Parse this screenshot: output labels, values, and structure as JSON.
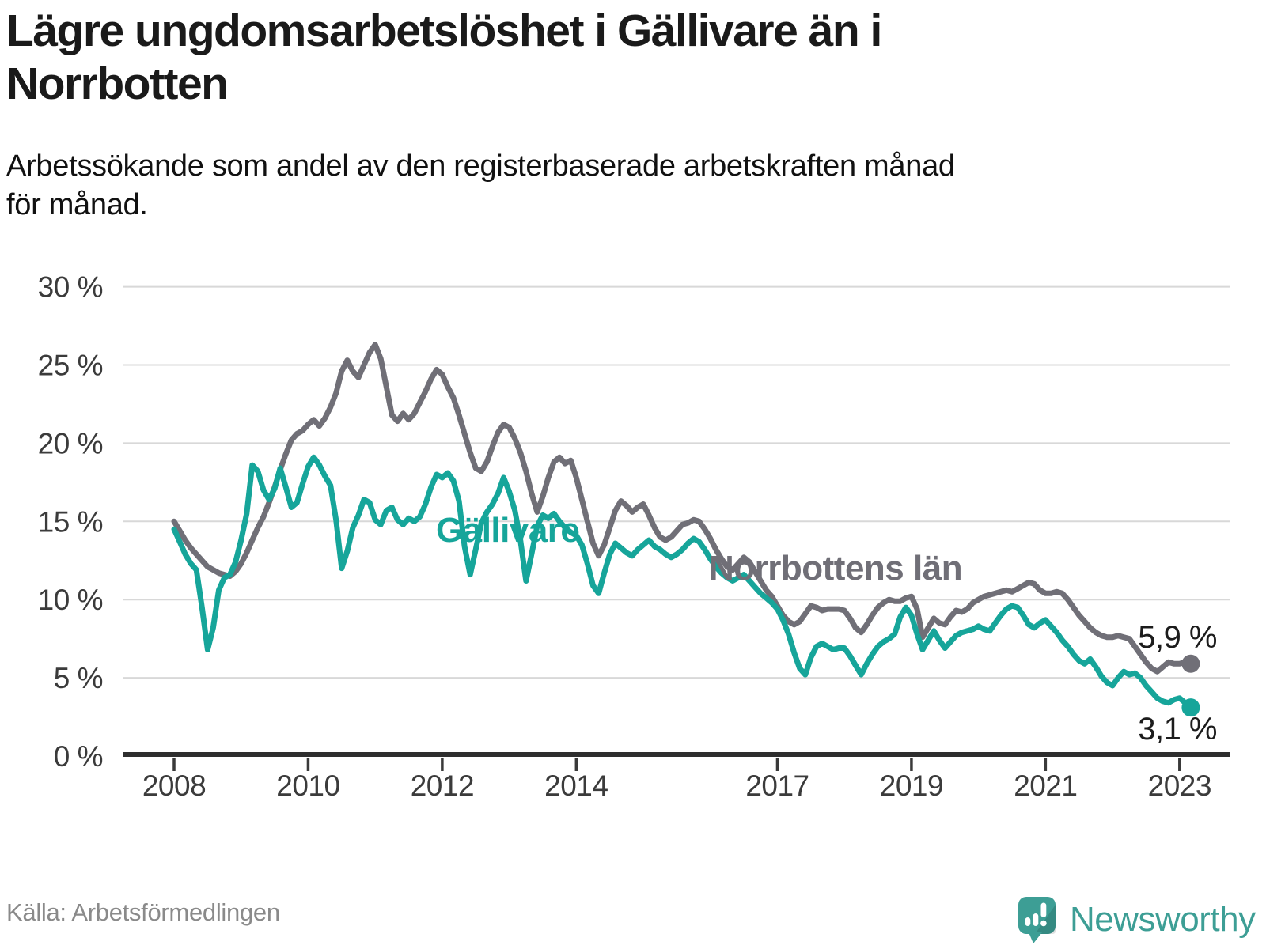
{
  "header": {
    "title": "Lägre ungdomsarbetslöshet i Gällivare än i Norrbotten",
    "subtitle": "Arbetssökande som andel av den registerbaserade arbetskraften månad för månad."
  },
  "chart_data": {
    "type": "line",
    "unit": "%",
    "x_start": "2008-01",
    "x_end": "2023-03",
    "points_per_year": 12,
    "x_ticks": [
      2008,
      2010,
      2012,
      2014,
      2017,
      2019,
      2021,
      2023
    ],
    "y_ticks": [
      30,
      25,
      20,
      15,
      10,
      5,
      0
    ],
    "ylim": [
      0,
      30
    ],
    "grid": "horizontal",
    "legend_position": "inline-labels",
    "series": [
      {
        "name": "Gällivare",
        "label": "Gällivare",
        "color": "#16a59a",
        "end_value": 3.1,
        "end_label": "3,1 %",
        "values": [
          14.5,
          13.7,
          12.9,
          12.3,
          11.9,
          9.5,
          6.8,
          8.2,
          10.6,
          11.4,
          11.6,
          12.4,
          13.8,
          15.5,
          18.6,
          18.2,
          17.0,
          16.4,
          17.1,
          18.4,
          17.2,
          15.9,
          16.2,
          17.4,
          18.5,
          19.1,
          18.6,
          17.9,
          17.3,
          15.1,
          12.0,
          13.1,
          14.6,
          15.4,
          16.4,
          16.2,
          15.1,
          14.8,
          15.7,
          15.9,
          15.1,
          14.8,
          15.2,
          15.0,
          15.3,
          16.1,
          17.2,
          18.0,
          17.8,
          18.1,
          17.6,
          16.3,
          13.4,
          11.6,
          13.2,
          14.9,
          15.6,
          16.1,
          16.8,
          17.8,
          16.9,
          15.7,
          13.8,
          11.2,
          12.9,
          14.7,
          15.4,
          15.2,
          15.5,
          15.0,
          14.6,
          14.3,
          14.1,
          13.5,
          12.3,
          10.9,
          10.4,
          11.7,
          12.9,
          13.6,
          13.3,
          13.0,
          12.8,
          13.2,
          13.5,
          13.8,
          13.4,
          13.2,
          12.9,
          12.7,
          12.9,
          13.2,
          13.6,
          13.9,
          13.7,
          13.2,
          12.6,
          12.1,
          11.7,
          11.4,
          11.2,
          11.4,
          11.6,
          11.2,
          10.8,
          10.4,
          10.1,
          9.8,
          9.4,
          8.7,
          7.8,
          6.6,
          5.6,
          5.2,
          6.3,
          7.0,
          7.2,
          7.0,
          6.8,
          6.9,
          6.9,
          6.4,
          5.8,
          5.2,
          5.9,
          6.5,
          7.0,
          7.3,
          7.5,
          7.8,
          8.9,
          9.5,
          9.0,
          7.8,
          6.8,
          7.4,
          8.0,
          7.4,
          6.9,
          7.3,
          7.7,
          7.9,
          8.0,
          8.1,
          8.3,
          8.1,
          8.0,
          8.5,
          9.0,
          9.4,
          9.6,
          9.5,
          9.0,
          8.4,
          8.2,
          8.5,
          8.7,
          8.3,
          7.9,
          7.4,
          7.0,
          6.5,
          6.1,
          5.9,
          6.2,
          5.7,
          5.1,
          4.7,
          4.5,
          5.0,
          5.4,
          5.2,
          5.3,
          5.0,
          4.5,
          4.1,
          3.7,
          3.5,
          3.4,
          3.6,
          3.7,
          3.4,
          3.1
        ]
      },
      {
        "name": "Norrbottens län",
        "label": "Norrbottens län",
        "color": "#706f77",
        "end_value": 5.9,
        "end_label": "5,9 %",
        "values": [
          15.0,
          14.4,
          13.8,
          13.3,
          12.9,
          12.5,
          12.1,
          11.9,
          11.7,
          11.6,
          11.5,
          11.8,
          12.3,
          13.0,
          13.8,
          14.6,
          15.3,
          16.2,
          17.2,
          18.3,
          19.3,
          20.2,
          20.6,
          20.8,
          21.2,
          21.5,
          21.1,
          21.6,
          22.3,
          23.2,
          24.6,
          25.3,
          24.6,
          24.2,
          25.0,
          25.8,
          26.3,
          25.4,
          23.6,
          21.8,
          21.4,
          21.9,
          21.5,
          21.9,
          22.6,
          23.3,
          24.1,
          24.7,
          24.4,
          23.6,
          22.9,
          21.8,
          20.6,
          19.4,
          18.4,
          18.2,
          18.8,
          19.8,
          20.7,
          21.2,
          21.0,
          20.3,
          19.4,
          18.2,
          16.8,
          15.6,
          16.6,
          17.8,
          18.8,
          19.1,
          18.7,
          18.9,
          17.8,
          16.4,
          15.0,
          13.6,
          12.8,
          13.5,
          14.6,
          15.7,
          16.3,
          16.0,
          15.6,
          15.9,
          16.1,
          15.4,
          14.6,
          14.0,
          13.8,
          14.0,
          14.4,
          14.8,
          14.9,
          15.1,
          15.0,
          14.5,
          13.9,
          13.2,
          12.6,
          12.1,
          11.9,
          12.3,
          12.7,
          12.4,
          11.8,
          11.2,
          10.6,
          10.2,
          9.6,
          9.0,
          8.6,
          8.4,
          8.6,
          9.1,
          9.6,
          9.5,
          9.3,
          9.4,
          9.4,
          9.4,
          9.3,
          8.8,
          8.2,
          7.9,
          8.4,
          9.0,
          9.5,
          9.8,
          10.0,
          9.9,
          9.9,
          10.1,
          10.2,
          9.4,
          7.6,
          8.2,
          8.8,
          8.5,
          8.4,
          8.9,
          9.3,
          9.2,
          9.4,
          9.8,
          10.0,
          10.2,
          10.3,
          10.4,
          10.5,
          10.6,
          10.5,
          10.7,
          10.9,
          11.1,
          11.0,
          10.6,
          10.4,
          10.4,
          10.5,
          10.4,
          10.0,
          9.5,
          9.0,
          8.6,
          8.2,
          7.9,
          7.7,
          7.6,
          7.6,
          7.7,
          7.6,
          7.5,
          7.0,
          6.5,
          6.0,
          5.6,
          5.4,
          5.7,
          6.0,
          5.9,
          5.9,
          6.0,
          5.9
        ]
      }
    ]
  },
  "footer": {
    "source": "Källa: Arbetsförmedlingen",
    "logo_text": "Newsworthy",
    "logo_color": "#3d9e95"
  }
}
